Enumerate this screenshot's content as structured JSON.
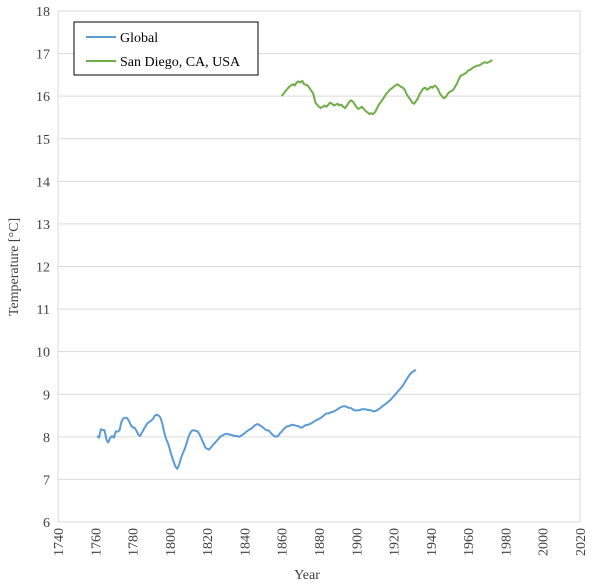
{
  "chart_data": {
    "type": "line",
    "title": "",
    "xlabel": "Year",
    "ylabel": "Temperature [°C]",
    "xlim": [
      1740,
      2020
    ],
    "ylim": [
      6,
      18
    ],
    "x_ticks": [
      "1740",
      "1760",
      "1780",
      "1800",
      "1820",
      "1840",
      "1860",
      "1880",
      "1900",
      "1920",
      "1940",
      "1960",
      "1980",
      "2000",
      "2020"
    ],
    "y_ticks": [
      "6",
      "7",
      "8",
      "9",
      "10",
      "11",
      "12",
      "13",
      "14",
      "15",
      "16",
      "17",
      "18"
    ],
    "grid": "horizontal",
    "legend_position": "top-left",
    "series": [
      {
        "name": "Global",
        "color": "#5B9BD5",
        "points": [
          [
            1761,
            8.02
          ],
          [
            1762,
            7.98
          ],
          [
            1763,
            8.18
          ],
          [
            1764,
            8.16
          ],
          [
            1765,
            8.15
          ],
          [
            1766,
            7.93
          ],
          [
            1767,
            7.87
          ],
          [
            1768,
            7.98
          ],
          [
            1769,
            8.02
          ],
          [
            1770,
            7.98
          ],
          [
            1771,
            8.13
          ],
          [
            1772,
            8.12
          ],
          [
            1773,
            8.15
          ],
          [
            1774,
            8.35
          ],
          [
            1775,
            8.43
          ],
          [
            1776,
            8.45
          ],
          [
            1777,
            8.44
          ],
          [
            1778,
            8.38
          ],
          [
            1779,
            8.28
          ],
          [
            1780,
            8.22
          ],
          [
            1781,
            8.22
          ],
          [
            1782,
            8.15
          ],
          [
            1783,
            8.05
          ],
          [
            1784,
            8.02
          ],
          [
            1785,
            8.1
          ],
          [
            1786,
            8.18
          ],
          [
            1787,
            8.25
          ],
          [
            1788,
            8.32
          ],
          [
            1789,
            8.35
          ],
          [
            1790,
            8.38
          ],
          [
            1791,
            8.42
          ],
          [
            1792,
            8.5
          ],
          [
            1793,
            8.52
          ],
          [
            1794,
            8.5
          ],
          [
            1795,
            8.45
          ],
          [
            1796,
            8.3
          ],
          [
            1797,
            8.1
          ],
          [
            1798,
            7.95
          ],
          [
            1799,
            7.85
          ],
          [
            1800,
            7.7
          ],
          [
            1801,
            7.55
          ],
          [
            1802,
            7.42
          ],
          [
            1803,
            7.3
          ],
          [
            1804,
            7.25
          ],
          [
            1805,
            7.35
          ],
          [
            1806,
            7.5
          ],
          [
            1807,
            7.62
          ],
          [
            1808,
            7.72
          ],
          [
            1809,
            7.85
          ],
          [
            1810,
            8.0
          ],
          [
            1811,
            8.1
          ],
          [
            1812,
            8.15
          ],
          [
            1813,
            8.15
          ],
          [
            1814,
            8.14
          ],
          [
            1815,
            8.12
          ],
          [
            1816,
            8.05
          ],
          [
            1817,
            7.95
          ],
          [
            1818,
            7.85
          ],
          [
            1819,
            7.75
          ],
          [
            1820,
            7.72
          ],
          [
            1821,
            7.7
          ],
          [
            1822,
            7.75
          ],
          [
            1823,
            7.8
          ],
          [
            1824,
            7.85
          ],
          [
            1825,
            7.9
          ],
          [
            1826,
            7.95
          ],
          [
            1827,
            8.0
          ],
          [
            1828,
            8.03
          ],
          [
            1829,
            8.05
          ],
          [
            1830,
            8.07
          ],
          [
            1831,
            8.07
          ],
          [
            1832,
            8.05
          ],
          [
            1833,
            8.05
          ],
          [
            1834,
            8.03
          ],
          [
            1835,
            8.02
          ],
          [
            1836,
            8.02
          ],
          [
            1837,
            8.0
          ],
          [
            1838,
            8.02
          ],
          [
            1839,
            8.05
          ],
          [
            1840,
            8.08
          ],
          [
            1841,
            8.12
          ],
          [
            1842,
            8.15
          ],
          [
            1843,
            8.18
          ],
          [
            1844,
            8.2
          ],
          [
            1845,
            8.25
          ],
          [
            1846,
            8.28
          ],
          [
            1847,
            8.3
          ],
          [
            1848,
            8.28
          ],
          [
            1849,
            8.25
          ],
          [
            1850,
            8.22
          ],
          [
            1851,
            8.18
          ],
          [
            1852,
            8.15
          ],
          [
            1853,
            8.15
          ],
          [
            1854,
            8.1
          ],
          [
            1855,
            8.05
          ],
          [
            1856,
            8.02
          ],
          [
            1857,
            8.0
          ],
          [
            1858,
            8.02
          ],
          [
            1859,
            8.08
          ],
          [
            1860,
            8.12
          ],
          [
            1861,
            8.18
          ],
          [
            1862,
            8.22
          ],
          [
            1863,
            8.25
          ],
          [
            1864,
            8.25
          ],
          [
            1865,
            8.28
          ],
          [
            1866,
            8.28
          ],
          [
            1867,
            8.27
          ],
          [
            1868,
            8.26
          ],
          [
            1869,
            8.25
          ],
          [
            1870,
            8.22
          ],
          [
            1871,
            8.22
          ],
          [
            1872,
            8.25
          ],
          [
            1873,
            8.28
          ],
          [
            1874,
            8.28
          ],
          [
            1875,
            8.3
          ],
          [
            1876,
            8.32
          ],
          [
            1877,
            8.35
          ],
          [
            1878,
            8.38
          ],
          [
            1879,
            8.4
          ],
          [
            1880,
            8.42
          ],
          [
            1881,
            8.45
          ],
          [
            1882,
            8.48
          ],
          [
            1883,
            8.52
          ],
          [
            1884,
            8.55
          ],
          [
            1885,
            8.55
          ],
          [
            1886,
            8.57
          ],
          [
            1887,
            8.58
          ],
          [
            1888,
            8.6
          ],
          [
            1889,
            8.62
          ],
          [
            1890,
            8.65
          ],
          [
            1891,
            8.68
          ],
          [
            1892,
            8.7
          ],
          [
            1893,
            8.72
          ],
          [
            1894,
            8.72
          ],
          [
            1895,
            8.7
          ],
          [
            1896,
            8.68
          ],
          [
            1897,
            8.68
          ],
          [
            1898,
            8.65
          ],
          [
            1899,
            8.62
          ],
          [
            1900,
            8.62
          ],
          [
            1901,
            8.62
          ],
          [
            1902,
            8.63
          ],
          [
            1903,
            8.65
          ],
          [
            1904,
            8.65
          ],
          [
            1905,
            8.65
          ],
          [
            1906,
            8.63
          ],
          [
            1907,
            8.63
          ],
          [
            1908,
            8.62
          ],
          [
            1909,
            8.6
          ],
          [
            1910,
            8.6
          ],
          [
            1911,
            8.62
          ],
          [
            1912,
            8.65
          ],
          [
            1913,
            8.68
          ],
          [
            1914,
            8.72
          ],
          [
            1915,
            8.75
          ],
          [
            1916,
            8.78
          ],
          [
            1917,
            8.82
          ],
          [
            1918,
            8.85
          ],
          [
            1919,
            8.9
          ],
          [
            1920,
            8.95
          ],
          [
            1921,
            9.0
          ],
          [
            1922,
            9.05
          ],
          [
            1923,
            9.1
          ],
          [
            1924,
            9.15
          ],
          [
            1925,
            9.2
          ],
          [
            1926,
            9.28
          ],
          [
            1927,
            9.35
          ],
          [
            1928,
            9.42
          ],
          [
            1929,
            9.48
          ],
          [
            1930,
            9.52
          ],
          [
            1931,
            9.55
          ],
          [
            1932,
            9.57
          ]
        ]
      },
      {
        "name": "San Diego, CA, USA",
        "color": "#70AD47",
        "points": [
          [
            1860,
            16.0
          ],
          [
            1862,
            16.12
          ],
          [
            1864,
            16.22
          ],
          [
            1866,
            16.28
          ],
          [
            1867,
            16.25
          ],
          [
            1868,
            16.32
          ],
          [
            1869,
            16.35
          ],
          [
            1870,
            16.32
          ],
          [
            1871,
            16.36
          ],
          [
            1872,
            16.28
          ],
          [
            1874,
            16.25
          ],
          [
            1876,
            16.12
          ],
          [
            1877,
            16.05
          ],
          [
            1878,
            15.85
          ],
          [
            1879,
            15.8
          ],
          [
            1880,
            15.75
          ],
          [
            1881,
            15.72
          ],
          [
            1882,
            15.75
          ],
          [
            1883,
            15.78
          ],
          [
            1884,
            15.75
          ],
          [
            1885,
            15.8
          ],
          [
            1886,
            15.85
          ],
          [
            1887,
            15.82
          ],
          [
            1888,
            15.78
          ],
          [
            1889,
            15.8
          ],
          [
            1890,
            15.82
          ],
          [
            1891,
            15.78
          ],
          [
            1892,
            15.8
          ],
          [
            1893,
            15.75
          ],
          [
            1894,
            15.72
          ],
          [
            1895,
            15.78
          ],
          [
            1896,
            15.85
          ],
          [
            1897,
            15.9
          ],
          [
            1898,
            15.88
          ],
          [
            1899,
            15.82
          ],
          [
            1900,
            15.75
          ],
          [
            1901,
            15.7
          ],
          [
            1902,
            15.72
          ],
          [
            1903,
            15.75
          ],
          [
            1904,
            15.7
          ],
          [
            1905,
            15.65
          ],
          [
            1906,
            15.62
          ],
          [
            1907,
            15.58
          ],
          [
            1908,
            15.6
          ],
          [
            1909,
            15.58
          ],
          [
            1910,
            15.62
          ],
          [
            1911,
            15.7
          ],
          [
            1912,
            15.8
          ],
          [
            1913,
            15.85
          ],
          [
            1914,
            15.92
          ],
          [
            1915,
            15.98
          ],
          [
            1916,
            16.05
          ],
          [
            1917,
            16.1
          ],
          [
            1918,
            16.15
          ],
          [
            1919,
            16.18
          ],
          [
            1920,
            16.22
          ],
          [
            1921,
            16.25
          ],
          [
            1922,
            16.28
          ],
          [
            1923,
            16.25
          ],
          [
            1924,
            16.22
          ],
          [
            1925,
            16.2
          ],
          [
            1926,
            16.15
          ],
          [
            1927,
            16.05
          ],
          [
            1928,
            15.98
          ],
          [
            1929,
            15.92
          ],
          [
            1930,
            15.85
          ],
          [
            1931,
            15.82
          ],
          [
            1932,
            15.88
          ],
          [
            1933,
            15.95
          ],
          [
            1934,
            16.05
          ],
          [
            1935,
            16.12
          ],
          [
            1936,
            16.18
          ],
          [
            1937,
            16.2
          ],
          [
            1938,
            16.15
          ],
          [
            1939,
            16.18
          ],
          [
            1940,
            16.22
          ],
          [
            1941,
            16.2
          ],
          [
            1942,
            16.25
          ],
          [
            1943,
            16.22
          ],
          [
            1944,
            16.15
          ],
          [
            1945,
            16.05
          ],
          [
            1946,
            16.0
          ],
          [
            1947,
            15.95
          ],
          [
            1948,
            15.98
          ],
          [
            1949,
            16.05
          ],
          [
            1950,
            16.1
          ],
          [
            1951,
            16.12
          ],
          [
            1952,
            16.15
          ],
          [
            1953,
            16.22
          ],
          [
            1954,
            16.3
          ],
          [
            1955,
            16.4
          ],
          [
            1956,
            16.48
          ],
          [
            1957,
            16.5
          ],
          [
            1958,
            16.52
          ],
          [
            1959,
            16.55
          ],
          [
            1960,
            16.6
          ],
          [
            1961,
            16.62
          ],
          [
            1962,
            16.65
          ],
          [
            1963,
            16.68
          ],
          [
            1964,
            16.7
          ],
          [
            1965,
            16.72
          ],
          [
            1966,
            16.72
          ],
          [
            1967,
            16.75
          ],
          [
            1968,
            16.78
          ],
          [
            1969,
            16.8
          ],
          [
            1970,
            16.78
          ],
          [
            1971,
            16.8
          ],
          [
            1972,
            16.82
          ],
          [
            1973,
            16.85
          ]
        ]
      }
    ]
  }
}
